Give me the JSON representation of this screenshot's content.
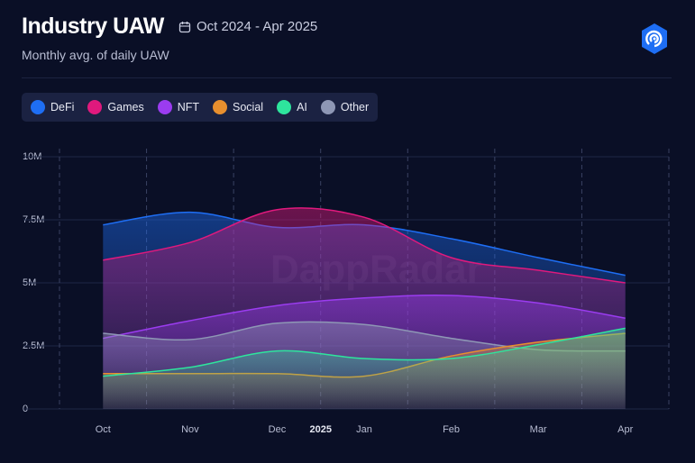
{
  "chart_data": {
    "type": "area",
    "title": "Industry UAW",
    "date_range": "Oct 2024 - Apr 2025",
    "subtitle": "Monthly avg. of daily UAW",
    "watermark": "DappRadar",
    "year_label": "2025",
    "categories": [
      "Oct",
      "Nov",
      "Dec",
      "Jan",
      "Feb",
      "Mar",
      "Apr"
    ],
    "series": [
      {
        "name": "DeFi",
        "color": "#1e6ef4",
        "values": [
          7300000,
          7800000,
          7200000,
          7300000,
          6750000,
          6000000,
          5300000
        ]
      },
      {
        "name": "Games",
        "color": "#e0197d",
        "values": [
          5900000,
          6600000,
          7900000,
          7600000,
          6000000,
          5500000,
          5000000
        ]
      },
      {
        "name": "NFT",
        "color": "#9b3cf0",
        "values": [
          2800000,
          3500000,
          4100000,
          4400000,
          4500000,
          4200000,
          3600000
        ]
      },
      {
        "name": "Social",
        "color": "#e88f2e",
        "values": [
          1400000,
          1400000,
          1400000,
          1300000,
          2100000,
          2650000,
          3000000
        ]
      },
      {
        "name": "AI",
        "color": "#2ee59d",
        "values": [
          1300000,
          1650000,
          2300000,
          2000000,
          2000000,
          2550000,
          3200000
        ]
      },
      {
        "name": "Other",
        "color": "#8e97b5",
        "values": [
          3000000,
          2750000,
          3400000,
          3350000,
          2800000,
          2350000,
          2300000
        ]
      }
    ],
    "draw_order": [
      "DeFi",
      "Games",
      "NFT",
      "Other",
      "Social",
      "AI"
    ],
    "ylim": [
      0,
      10000000
    ],
    "yticks": [
      0,
      {
        "value": 2500000,
        "label": "2.5M"
      },
      {
        "value": 5000000,
        "label": "5M"
      },
      {
        "value": 7500000,
        "label": "7.5M"
      },
      {
        "value": 10000000,
        "label": "10M"
      }
    ],
    "grid": true
  }
}
